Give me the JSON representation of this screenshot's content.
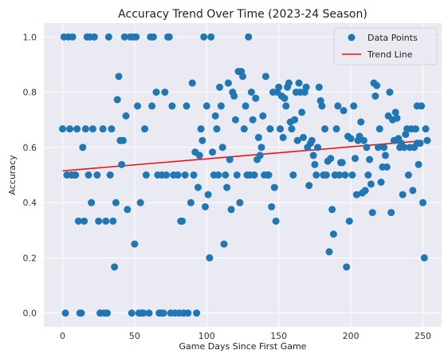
{
  "chart_data": {
    "type": "scatter",
    "title": "Accuracy Trend Over Time (2023-24 Season)",
    "xlabel": "Game Days Since First Game",
    "ylabel": "Accuracy",
    "xlim": [
      -13,
      263
    ],
    "ylim": [
      -0.05,
      1.05
    ],
    "xticks": [
      0,
      50,
      100,
      150,
      200,
      250
    ],
    "xtick_labels": [
      "0",
      "50",
      "100",
      "150",
      "200",
      "250"
    ],
    "yticks": [
      0.0,
      0.2,
      0.4,
      0.6,
      0.8,
      1.0
    ],
    "ytick_labels": [
      "0.0",
      "0.2",
      "0.4",
      "0.6",
      "0.8",
      "1.0"
    ],
    "grid": true,
    "legend_position": "top-right",
    "series": [
      {
        "name": "Data Points",
        "kind": "scatter",
        "color": "#1f77b4",
        "points": [
          [
            0,
            0.667
          ],
          [
            1,
            1.0
          ],
          [
            2,
            0.0
          ],
          [
            3,
            0.5
          ],
          [
            4,
            1.0
          ],
          [
            5,
            0.667
          ],
          [
            6,
            0.5
          ],
          [
            7,
            1.0
          ],
          [
            8,
            0.5
          ],
          [
            9,
            0.5
          ],
          [
            10,
            0.667
          ],
          [
            11,
            0.333
          ],
          [
            12,
            0.0
          ],
          [
            13,
            0.0
          ],
          [
            14,
            0.6
          ],
          [
            15,
            0.333
          ],
          [
            16,
            0.667
          ],
          [
            17,
            1.0
          ],
          [
            18,
            0.5
          ],
          [
            19,
            1.0
          ],
          [
            20,
            0.4
          ],
          [
            21,
            0.667
          ],
          [
            22,
            1.0
          ],
          [
            24,
            0.5
          ],
          [
            25,
            0.333
          ],
          [
            26,
            0.0
          ],
          [
            28,
            0.667
          ],
          [
            29,
            0.0
          ],
          [
            30,
            0.333
          ],
          [
            31,
            0.0
          ],
          [
            32,
            1.0
          ],
          [
            33,
            0.5
          ],
          [
            34,
            0.667
          ],
          [
            35,
            0.333
          ],
          [
            36,
            0.167
          ],
          [
            37,
            0.4
          ],
          [
            38,
            0.773
          ],
          [
            39,
            0.857
          ],
          [
            40,
            0.625
          ],
          [
            41,
            0.538
          ],
          [
            42,
            0.625
          ],
          [
            43,
            1.0
          ],
          [
            44,
            0.714
          ],
          [
            45,
            0.375
          ],
          [
            47,
            1.0
          ],
          [
            48,
            0.0
          ],
          [
            49,
            1.0
          ],
          [
            50,
            0.25
          ],
          [
            51,
            1.0
          ],
          [
            52,
            0.75
          ],
          [
            53,
            0.0
          ],
          [
            54,
            0.4
          ],
          [
            55,
            0.0
          ],
          [
            56,
            0.0
          ],
          [
            57,
            0.667
          ],
          [
            58,
            0.5
          ],
          [
            60,
            0.0
          ],
          [
            61,
            1.0
          ],
          [
            62,
            0.75
          ],
          [
            63,
            1.0
          ],
          [
            65,
            0.8
          ],
          [
            66,
            0.5
          ],
          [
            67,
            0.0
          ],
          [
            68,
            0.0
          ],
          [
            69,
            0.5
          ],
          [
            70,
            0.0
          ],
          [
            71,
            0.8
          ],
          [
            72,
            0.5
          ],
          [
            73,
            1.0
          ],
          [
            74,
            1.0
          ],
          [
            75,
            0.0
          ],
          [
            76,
            0.75
          ],
          [
            77,
            0.5
          ],
          [
            78,
            0.0
          ],
          [
            80,
            0.5
          ],
          [
            81,
            0.0
          ],
          [
            82,
            0.333
          ],
          [
            83,
            0.333
          ],
          [
            84,
            0.0
          ],
          [
            85,
            0.5
          ],
          [
            86,
            0.75
          ],
          [
            87,
            0.0
          ],
          [
            89,
            0.4
          ],
          [
            90,
            0.833
          ],
          [
            91,
            0.5
          ],
          [
            92,
            0.583
          ],
          [
            93,
            0.0
          ],
          [
            94,
            0.455
          ],
          [
            95,
            0.571
          ],
          [
            96,
            0.667
          ],
          [
            97,
            0.625
          ],
          [
            98,
            1.0
          ],
          [
            99,
            0.385
          ],
          [
            100,
            0.75
          ],
          [
            101,
            0.429
          ],
          [
            102,
            0.2
          ],
          [
            103,
            1.0
          ],
          [
            104,
            0.583
          ],
          [
            105,
            0.5
          ],
          [
            106,
            0.714
          ],
          [
            107,
            0.667
          ],
          [
            108,
            0.5
          ],
          [
            109,
            0.818
          ],
          [
            110,
            0.75
          ],
          [
            111,
            0.6
          ],
          [
            112,
            0.25
          ],
          [
            113,
            0.5
          ],
          [
            114,
            0.455
          ],
          [
            115,
            0.833
          ],
          [
            116,
            0.556
          ],
          [
            117,
            0.375
          ],
          [
            118,
            0.8
          ],
          [
            119,
            0.786
          ],
          [
            120,
            0.7
          ],
          [
            121,
            0.5
          ],
          [
            122,
            0.875
          ],
          [
            123,
            0.4
          ],
          [
            124,
            0.875
          ],
          [
            125,
            0.857
          ],
          [
            126,
            0.667
          ],
          [
            127,
            0.75
          ],
          [
            128,
            0.5
          ],
          [
            129,
            1.0
          ],
          [
            130,
            0.5
          ],
          [
            131,
            0.8
          ],
          [
            132,
            0.7
          ],
          [
            133,
            0.5
          ],
          [
            134,
            0.778
          ],
          [
            135,
            0.556
          ],
          [
            136,
            0.636
          ],
          [
            137,
            0.571
          ],
          [
            138,
            0.6
          ],
          [
            139,
            0.714
          ],
          [
            140,
            0.5
          ],
          [
            141,
            0.857
          ],
          [
            142,
            0.5
          ],
          [
            143,
            0.5
          ],
          [
            144,
            0.667
          ],
          [
            145,
            0.385
          ],
          [
            146,
            0.8
          ],
          [
            147,
            0.455
          ],
          [
            148,
            0.333
          ],
          [
            149,
            0.8
          ],
          [
            150,
            0.818
          ],
          [
            151,
            0.667
          ],
          [
            152,
            0.786
          ],
          [
            153,
            0.636
          ],
          [
            154,
            0.778
          ],
          [
            155,
            0.75
          ],
          [
            156,
            0.818
          ],
          [
            157,
            0.833
          ],
          [
            158,
            0.692
          ],
          [
            159,
            0.667
          ],
          [
            160,
            0.5
          ],
          [
            161,
            0.7
          ],
          [
            162,
            0.8
          ],
          [
            163,
            0.625
          ],
          [
            164,
            0.833
          ],
          [
            165,
            0.8
          ],
          [
            166,
            0.727
          ],
          [
            167,
            0.636
          ],
          [
            168,
            0.8
          ],
          [
            169,
            0.818
          ],
          [
            170,
            0.6
          ],
          [
            171,
            0.462
          ],
          [
            172,
            0.615
          ],
          [
            173,
            0.625
          ],
          [
            174,
            0.571
          ],
          [
            175,
            0.538
          ],
          [
            176,
            0.5
          ],
          [
            177,
            0.6
          ],
          [
            178,
            0.818
          ],
          [
            179,
            0.769
          ],
          [
            180,
            0.75
          ],
          [
            181,
            0.5
          ],
          [
            182,
            0.667
          ],
          [
            183,
            0.5
          ],
          [
            184,
            0.55
          ],
          [
            185,
            0.222
          ],
          [
            186,
            0.56
          ],
          [
            187,
            0.375
          ],
          [
            188,
            0.286
          ],
          [
            189,
            0.5
          ],
          [
            190,
            0.667
          ],
          [
            191,
            0.75
          ],
          [
            192,
            0.5
          ],
          [
            193,
            0.545
          ],
          [
            194,
            0.545
          ],
          [
            195,
            0.733
          ],
          [
            196,
            0.5
          ],
          [
            197,
            0.167
          ],
          [
            198,
            0.64
          ],
          [
            199,
            0.333
          ],
          [
            200,
            0.632
          ],
          [
            201,
            0.5
          ],
          [
            202,
            0.75
          ],
          [
            203,
            0.56
          ],
          [
            204,
            0.429
          ],
          [
            205,
            0.625
          ],
          [
            206,
            0.64
          ],
          [
            207,
            0.692
          ],
          [
            208,
            0.435
          ],
          [
            209,
            0.625
          ],
          [
            210,
            0.444
          ],
          [
            211,
            0.6
          ],
          [
            212,
            0.5
          ],
          [
            213,
            0.556
          ],
          [
            214,
            0.467
          ],
          [
            215,
            0.364
          ],
          [
            216,
            0.833
          ],
          [
            217,
            0.786
          ],
          [
            218,
            0.824
          ],
          [
            219,
            0.6
          ],
          [
            220,
            0.667
          ],
          [
            221,
            0.474
          ],
          [
            222,
            0.529
          ],
          [
            223,
            0.6
          ],
          [
            224,
            0.571
          ],
          [
            225,
            0.529
          ],
          [
            226,
            0.714
          ],
          [
            227,
            0.8
          ],
          [
            228,
            0.364
          ],
          [
            229,
            0.7
          ],
          [
            230,
            0.625
          ],
          [
            231,
            0.727
          ],
          [
            232,
            0.706
          ],
          [
            233,
            0.632
          ],
          [
            234,
            0.6
          ],
          [
            235,
            0.615
          ],
          [
            236,
            0.429
          ],
          [
            237,
            0.6
          ],
          [
            238,
            0.647
          ],
          [
            239,
            0.667
          ],
          [
            240,
            0.5
          ],
          [
            241,
            0.6
          ],
          [
            242,
            0.667
          ],
          [
            243,
            0.444
          ],
          [
            244,
            0.6
          ],
          [
            245,
            0.667
          ],
          [
            246,
            0.75
          ],
          [
            247,
            0.538
          ],
          [
            248,
            0.615
          ],
          [
            249,
            0.75
          ],
          [
            250,
            0.4
          ],
          [
            251,
            0.2
          ],
          [
            252,
            0.667
          ],
          [
            246,
            0.615
          ],
          [
            253,
            0.625
          ]
        ]
      },
      {
        "name": "Trend Line",
        "kind": "line",
        "color": "#ee1111",
        "points": [
          [
            0,
            0.515
          ],
          [
            250,
            0.624
          ]
        ]
      }
    ]
  }
}
